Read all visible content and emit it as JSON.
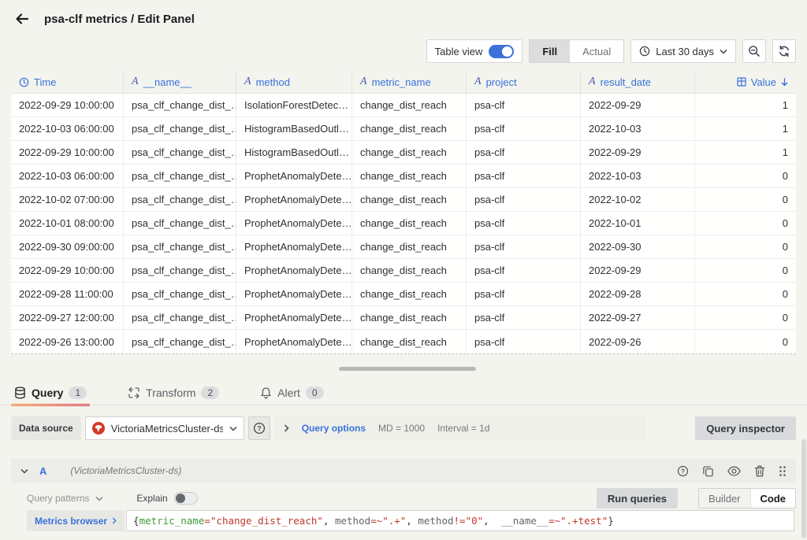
{
  "header": {
    "title": "psa-clf metrics / Edit Panel"
  },
  "toolbar": {
    "table_view_label": "Table view",
    "table_view_on": true,
    "fill_label": "Fill",
    "actual_label": "Actual",
    "fill_selected": true,
    "time_range_label": "Last 30 days"
  },
  "icons": {
    "back": "back-arrow-icon",
    "clock": "clock-icon",
    "zoom_out": "zoom-out-icon",
    "refresh": "refresh-icon",
    "sort_desc": "arrow-down-icon"
  },
  "table": {
    "columns": [
      {
        "label": "Time",
        "type": "time"
      },
      {
        "label": "__name__",
        "type": "string"
      },
      {
        "label": "method",
        "type": "string"
      },
      {
        "label": "metric_name",
        "type": "string"
      },
      {
        "label": "project",
        "type": "string"
      },
      {
        "label": "result_date",
        "type": "string"
      },
      {
        "label": "Value",
        "type": "number",
        "sort": "desc"
      }
    ],
    "rows": [
      [
        "2022-09-29 10:00:00",
        "psa_clf_change_dist_…",
        "IsolationForestDetec…",
        "change_dist_reach",
        "psa-clf",
        "2022-09-29",
        "1"
      ],
      [
        "2022-10-03 06:00:00",
        "psa_clf_change_dist_…",
        "HistogramBasedOutl…",
        "change_dist_reach",
        "psa-clf",
        "2022-10-03",
        "1"
      ],
      [
        "2022-09-29 10:00:00",
        "psa_clf_change_dist_…",
        "HistogramBasedOutl…",
        "change_dist_reach",
        "psa-clf",
        "2022-09-29",
        "1"
      ],
      [
        "2022-10-03 06:00:00",
        "psa_clf_change_dist_…",
        "ProphetAnomalyDete…",
        "change_dist_reach",
        "psa-clf",
        "2022-10-03",
        "0"
      ],
      [
        "2022-10-02 07:00:00",
        "psa_clf_change_dist_…",
        "ProphetAnomalyDete…",
        "change_dist_reach",
        "psa-clf",
        "2022-10-02",
        "0"
      ],
      [
        "2022-10-01 08:00:00",
        "psa_clf_change_dist_…",
        "ProphetAnomalyDete…",
        "change_dist_reach",
        "psa-clf",
        "2022-10-01",
        "0"
      ],
      [
        "2022-09-30 09:00:00",
        "psa_clf_change_dist_…",
        "ProphetAnomalyDete…",
        "change_dist_reach",
        "psa-clf",
        "2022-09-30",
        "0"
      ],
      [
        "2022-09-29 10:00:00",
        "psa_clf_change_dist_…",
        "ProphetAnomalyDete…",
        "change_dist_reach",
        "psa-clf",
        "2022-09-29",
        "0"
      ],
      [
        "2022-09-28 11:00:00",
        "psa_clf_change_dist_…",
        "ProphetAnomalyDete…",
        "change_dist_reach",
        "psa-clf",
        "2022-09-28",
        "0"
      ],
      [
        "2022-09-27 12:00:00",
        "psa_clf_change_dist_…",
        "ProphetAnomalyDete…",
        "change_dist_reach",
        "psa-clf",
        "2022-09-27",
        "0"
      ],
      [
        "2022-09-26 13:00:00",
        "psa_clf_change_dist_…",
        "ProphetAnomalyDete…",
        "change_dist_reach",
        "psa-clf",
        "2022-09-26",
        "0"
      ]
    ]
  },
  "tabs": [
    {
      "label": "Query",
      "badge": "1",
      "active": true,
      "icon": "database-icon"
    },
    {
      "label": "Transform",
      "badge": "2",
      "active": false,
      "icon": "transform-icon"
    },
    {
      "label": "Alert",
      "badge": "0",
      "active": false,
      "icon": "bell-icon"
    }
  ],
  "datasource": {
    "label": "Data source",
    "name": "VictoriaMetricsCluster-ds",
    "query_options_label": "Query options",
    "max_data_points": "MD = 1000",
    "interval": "Interval = 1d",
    "query_inspector_label": "Query inspector"
  },
  "query": {
    "ref_id": "A",
    "ds_hint": "(VictoriaMetricsCluster-ds)",
    "patterns_label": "Query patterns",
    "explain_label": "Explain",
    "explain_on": false,
    "run_label": "Run queries",
    "builder_label": "Builder",
    "code_label": "Code",
    "mode_selected": "Code",
    "metrics_browser_label": "Metrics browser",
    "expression": "{metric_name=\"change_dist_reach\", method=~\".+\", method!=\"0\",  __name__=~\".+test\"}",
    "expr_tokens": [
      {
        "t": "{",
        "c": "punct"
      },
      {
        "t": "metric_name",
        "c": "label"
      },
      {
        "t": "=",
        "c": "op"
      },
      {
        "t": "\"change_dist_reach\"",
        "c": "str"
      },
      {
        "t": ", ",
        "c": "punct"
      },
      {
        "t": "method",
        "c": "plain"
      },
      {
        "t": "=~",
        "c": "op"
      },
      {
        "t": "\".+\"",
        "c": "str"
      },
      {
        "t": ", ",
        "c": "punct"
      },
      {
        "t": "method",
        "c": "plain"
      },
      {
        "t": "!=",
        "c": "op"
      },
      {
        "t": "\"0\"",
        "c": "str"
      },
      {
        "t": ",  ",
        "c": "punct"
      },
      {
        "t": "__name__",
        "c": "plain"
      },
      {
        "t": "=~",
        "c": "op"
      },
      {
        "t": "\".+test\"",
        "c": "str"
      },
      {
        "t": "}",
        "c": "punct"
      }
    ]
  },
  "colors": {
    "accent_blue": "#3871dc",
    "toggle_on_blue": "#3d71d9",
    "tab_underline": "linear-gradient(90deg,#ff8833,#e02f44)",
    "vm_logo_red": "#d43727",
    "code_label_green": "#3f9b37",
    "code_string_red": "#c0392b",
    "page_background": "#f3f4ee"
  }
}
